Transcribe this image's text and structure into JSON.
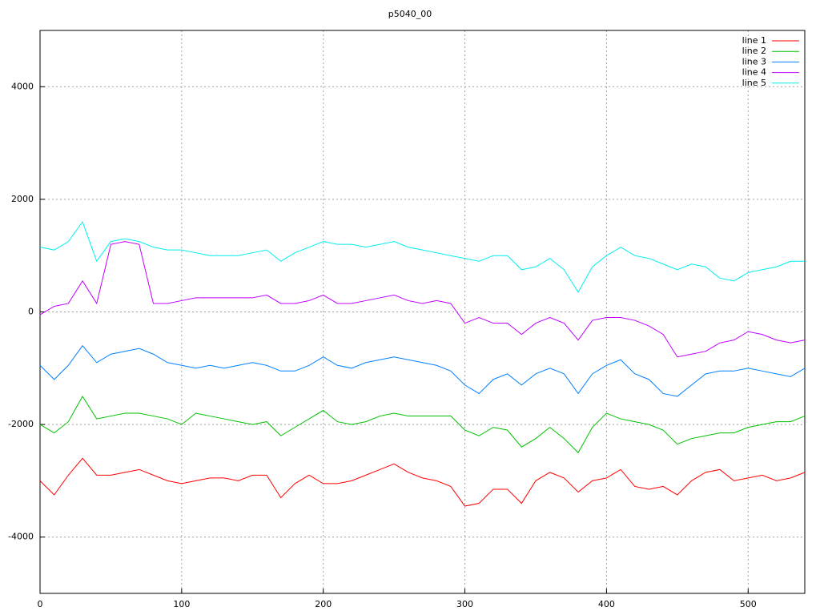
{
  "chart_data": {
    "type": "line",
    "title": "p5040_00",
    "x": [
      0,
      10,
      20,
      30,
      40,
      50,
      60,
      70,
      80,
      90,
      100,
      110,
      120,
      130,
      140,
      150,
      160,
      170,
      180,
      190,
      200,
      210,
      220,
      230,
      240,
      250,
      260,
      270,
      280,
      290,
      300,
      310,
      320,
      330,
      340,
      350,
      360,
      370,
      380,
      390,
      400,
      410,
      420,
      430,
      440,
      450,
      460,
      470,
      480,
      490,
      500,
      510,
      520,
      530,
      540
    ],
    "xlim": [
      0,
      540
    ],
    "xticks": [
      0,
      100,
      200,
      300,
      400,
      500
    ],
    "ylim": [
      -5000,
      5000
    ],
    "yticks": [
      -4000,
      -2000,
      0,
      2000,
      4000
    ],
    "grid": true,
    "legend": "top-right",
    "series": [
      {
        "name": "line 1",
        "color": "#ff0000",
        "values": [
          -3000,
          -3250,
          -2900,
          -2600,
          -2900,
          -2900,
          -2850,
          -2800,
          -2900,
          -3000,
          -3050,
          -3000,
          -2950,
          -2950,
          -3000,
          -2900,
          -2900,
          -3300,
          -3050,
          -2900,
          -3050,
          -3050,
          -3000,
          -2900,
          -2800,
          -2700,
          -2850,
          -2950,
          -3000,
          -3100,
          -3450,
          -3400,
          -3150,
          -3150,
          -3400,
          -3000,
          -2850,
          -2950,
          -3200,
          -3000,
          -2950,
          -2800,
          -3100,
          -3150,
          -3100,
          -3250,
          -3000,
          -2850,
          -2800,
          -3000,
          -2950,
          -2900,
          -3000,
          -2950,
          -2850
        ]
      },
      {
        "name": "line 2",
        "color": "#00c000",
        "values": [
          -2000,
          -2150,
          -1950,
          -1500,
          -1900,
          -1850,
          -1800,
          -1800,
          -1850,
          -1900,
          -2000,
          -1800,
          -1850,
          -1900,
          -1950,
          -2000,
          -1950,
          -2200,
          -2050,
          -1900,
          -1750,
          -1950,
          -2000,
          -1950,
          -1850,
          -1800,
          -1850,
          -1850,
          -1850,
          -1850,
          -2100,
          -2200,
          -2050,
          -2100,
          -2400,
          -2250,
          -2050,
          -2250,
          -2500,
          -2050,
          -1800,
          -1900,
          -1950,
          -2000,
          -2100,
          -2350,
          -2250,
          -2200,
          -2150,
          -2150,
          -2050,
          -2000,
          -1950,
          -1950,
          -1850
        ]
      },
      {
        "name": "line 3",
        "color": "#0080ff",
        "values": [
          -950,
          -1200,
          -950,
          -600,
          -900,
          -750,
          -700,
          -650,
          -750,
          -900,
          -950,
          -1000,
          -950,
          -1000,
          -950,
          -900,
          -950,
          -1050,
          -1050,
          -950,
          -800,
          -950,
          -1000,
          -900,
          -850,
          -800,
          -850,
          -900,
          -950,
          -1050,
          -1300,
          -1450,
          -1200,
          -1100,
          -1300,
          -1100,
          -1000,
          -1100,
          -1450,
          -1100,
          -950,
          -850,
          -1100,
          -1200,
          -1450,
          -1500,
          -1300,
          -1100,
          -1050,
          -1050,
          -1000,
          -1050,
          -1100,
          -1150,
          -1000
        ]
      },
      {
        "name": "line 4",
        "color": "#c000ff",
        "values": [
          -50,
          100,
          150,
          550,
          150,
          1200,
          1250,
          1200,
          150,
          150,
          200,
          250,
          250,
          250,
          250,
          250,
          300,
          150,
          150,
          200,
          300,
          150,
          150,
          200,
          250,
          300,
          200,
          150,
          200,
          150,
          -200,
          -100,
          -200,
          -200,
          -400,
          -200,
          -100,
          -200,
          -500,
          -150,
          -100,
          -100,
          -150,
          -250,
          -400,
          -800,
          -750,
          -700,
          -550,
          -500,
          -350,
          -400,
          -500,
          -550,
          -500
        ]
      },
      {
        "name": "line 5",
        "color": "#00eeee",
        "values": [
          1150,
          1100,
          1250,
          1600,
          900,
          1250,
          1300,
          1250,
          1150,
          1100,
          1100,
          1050,
          1000,
          1000,
          1000,
          1050,
          1100,
          900,
          1050,
          1150,
          1250,
          1200,
          1200,
          1150,
          1200,
          1250,
          1150,
          1100,
          1050,
          1000,
          950,
          900,
          1000,
          1000,
          750,
          800,
          950,
          750,
          350,
          800,
          1000,
          1150,
          1000,
          950,
          850,
          750,
          850,
          800,
          600,
          550,
          700,
          750,
          800,
          900,
          900
        ]
      }
    ]
  }
}
